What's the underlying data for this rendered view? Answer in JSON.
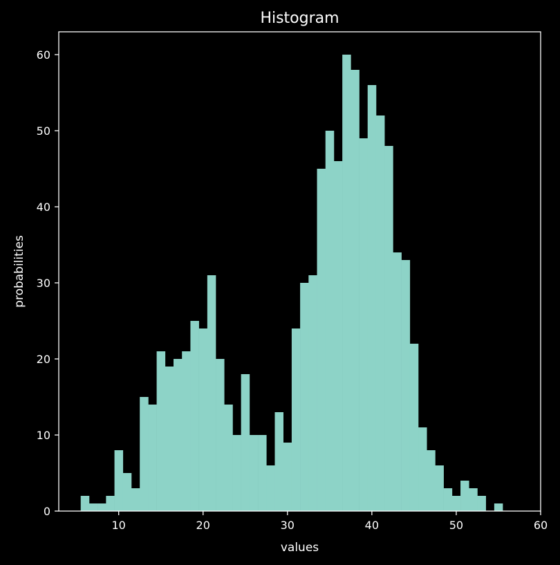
{
  "chart_data": {
    "type": "histogram",
    "title": "Histogram",
    "xlabel": "values",
    "ylabel": "probabilities",
    "xlim": [
      2.9,
      60
    ],
    "ylim": [
      0,
      63
    ],
    "x_ticks": [
      10,
      20,
      30,
      40,
      50,
      60
    ],
    "y_ticks": [
      0,
      10,
      20,
      30,
      40,
      50,
      60
    ],
    "bin_start": 5.5,
    "bin_width": 1.0,
    "counts": [
      2,
      1,
      1,
      2,
      8,
      5,
      3,
      15,
      14,
      21,
      19,
      20,
      21,
      25,
      24,
      31,
      20,
      14,
      10,
      18,
      10,
      10,
      6,
      13,
      9,
      24,
      30,
      31,
      45,
      50,
      46,
      60,
      58,
      49,
      56,
      52,
      48,
      34,
      33,
      22,
      11,
      8,
      6,
      3,
      2,
      4,
      3,
      2,
      0,
      1
    ],
    "grid": false,
    "colors": {
      "background": "#000000",
      "bar": "#8dd3c7",
      "axes": "#ffffff",
      "text": "#ffffff"
    }
  }
}
